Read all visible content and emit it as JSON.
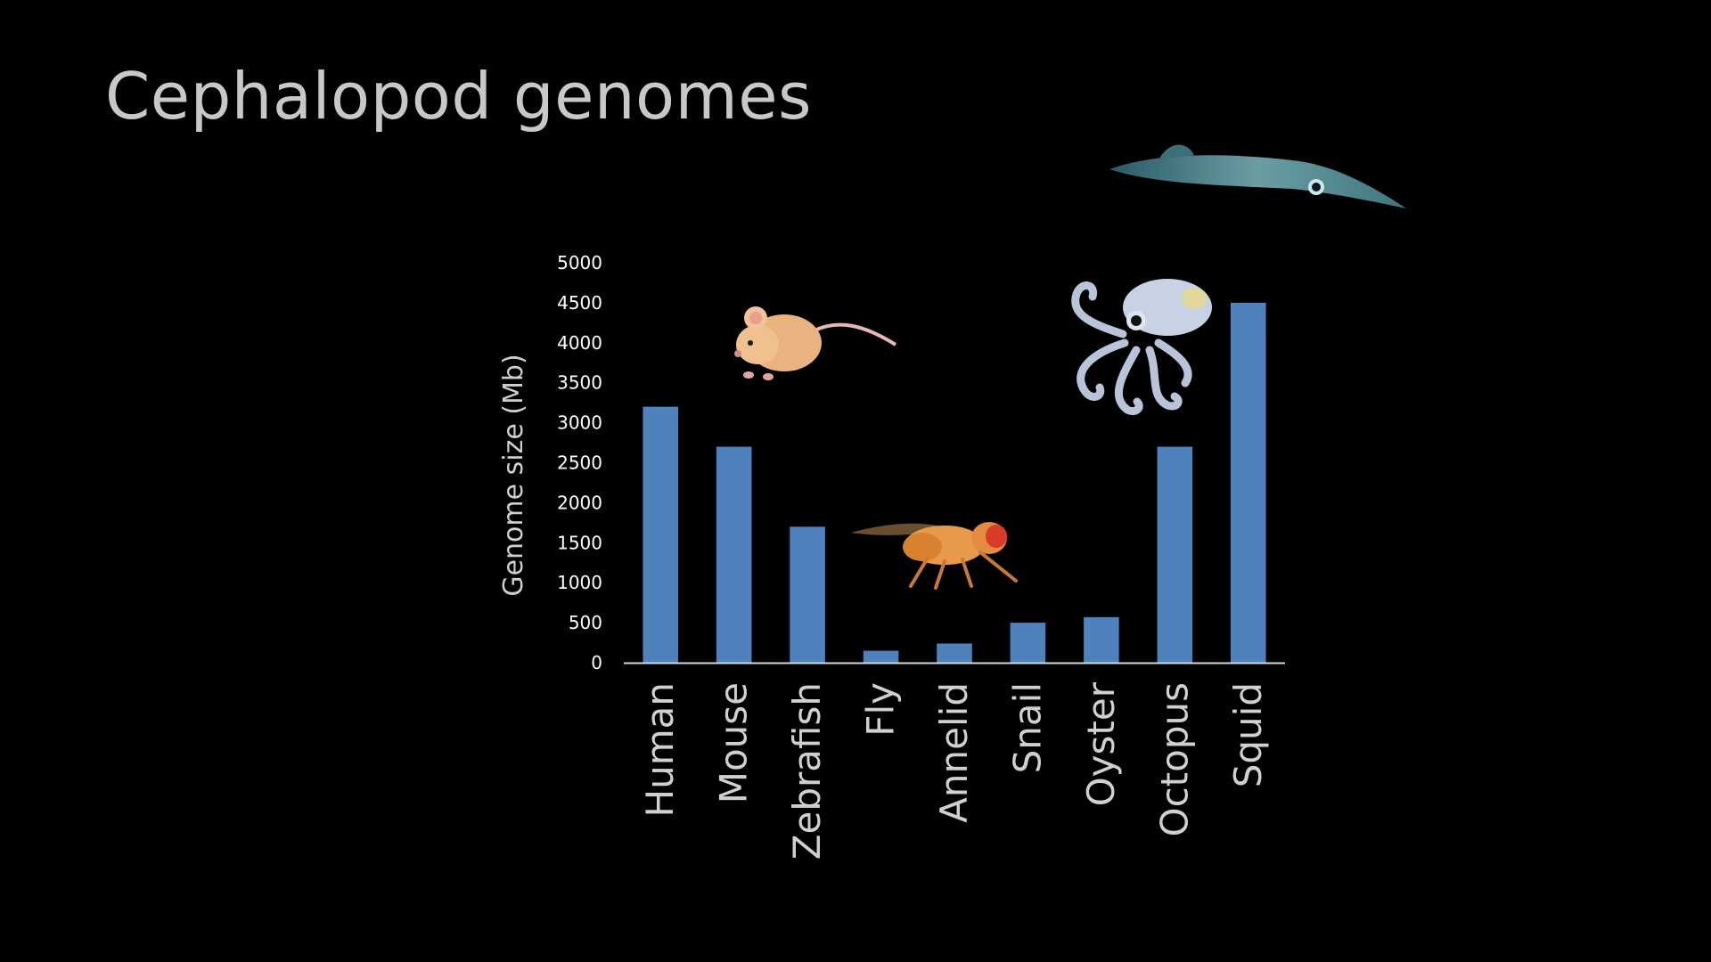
{
  "slide": {
    "title": "Cephalopod genomes"
  },
  "colors": {
    "background": "#000000",
    "bar": "#4f81bd",
    "axis": "#d9d9d9",
    "title": "#c8c8c8"
  },
  "images": [
    "squid-photo",
    "mouse-photo",
    "octopus-photo",
    "fly-photo"
  ],
  "chart_data": {
    "type": "bar",
    "title": "",
    "xlabel": "",
    "ylabel": "Genome size (Mb)",
    "categories": [
      "Human",
      "Mouse",
      "Zebrafish",
      "Fly",
      "Annelid",
      "Snail",
      "Oyster",
      "Octopus",
      "Squid"
    ],
    "values": [
      3200,
      2700,
      1700,
      150,
      240,
      500,
      570,
      2700,
      4500
    ],
    "yticks": [
      "0",
      "500",
      "1000",
      "1500",
      "2000",
      "2500",
      "3000",
      "3500",
      "4000",
      "4500",
      "5000"
    ],
    "ylim": [
      0,
      5000
    ],
    "grid": false,
    "legend": "none"
  }
}
